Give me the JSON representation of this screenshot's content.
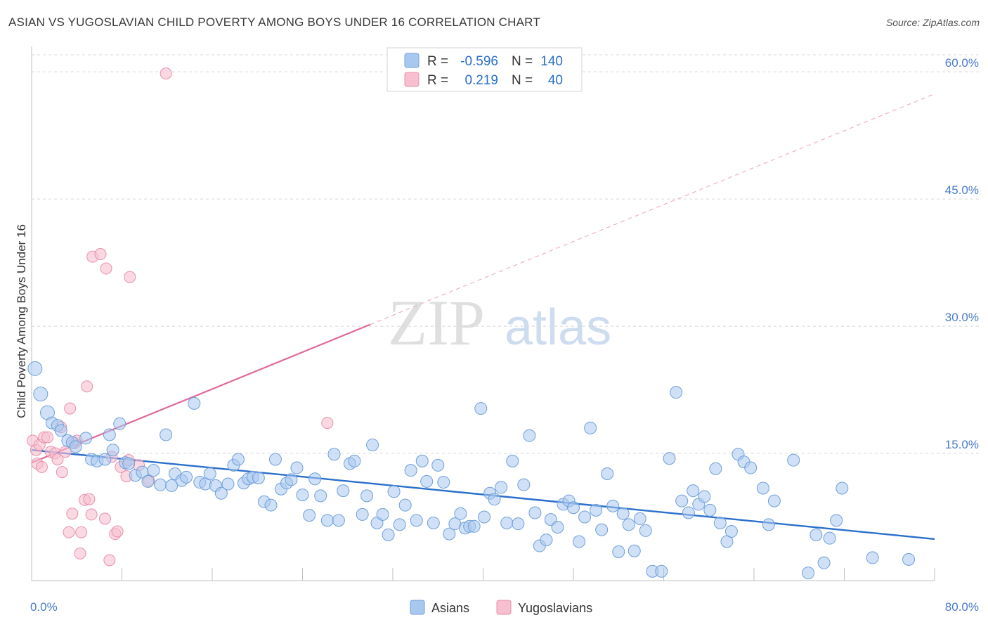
{
  "title": "ASIAN VS YUGOSLAVIAN CHILD POVERTY AMONG BOYS UNDER 16 CORRELATION CHART",
  "source": "Source: ZipAtlas.com",
  "watermark": {
    "zip": "ZIP",
    "atlas": "atlas"
  },
  "legend": {
    "rows": [
      {
        "r_label": "R =",
        "r_value": "-0.596",
        "n_label": "N =",
        "n_value": "140"
      },
      {
        "r_label": "R =",
        "r_value": "0.219",
        "n_label": "N =",
        "n_value": "40"
      }
    ]
  },
  "bottom_legend": [
    "Asians",
    "Yugoslavians"
  ],
  "colors": {
    "asian_fill": "#a9c8f0",
    "asian_stroke": "#6f9fd8",
    "asian_line": "#2a6fcc",
    "yugo_fill": "#f7bfd0",
    "yugo_stroke": "#e890ac",
    "yugo_line": "#e0699a",
    "tick_text": "#4a7cc9",
    "grid": "#d8d8d8"
  },
  "chart_data": {
    "type": "scatter",
    "title": "ASIAN VS YUGOSLAVIAN CHILD POVERTY AMONG BOYS UNDER 16 CORRELATION CHART",
    "xlabel": "",
    "ylabel": "Child Poverty Among Boys Under 16",
    "xlim": [
      0,
      80
    ],
    "ylim": [
      0,
      62
    ],
    "x_tick_labels": [
      "0.0%",
      "80.0%"
    ],
    "y_ticks": [
      15,
      30,
      45,
      60
    ],
    "y_tick_labels": [
      "15.0%",
      "30.0%",
      "45.0%",
      "60.0%"
    ],
    "grid": "horizontal dashed",
    "legend_position": "top-center",
    "series": [
      {
        "name": "Asians",
        "r": -0.596,
        "n": 140,
        "trend": {
          "x": [
            0,
            80
          ],
          "y": [
            15.4,
            4.9
          ]
        },
        "points": [
          [
            0.3,
            25.0
          ],
          [
            0.8,
            22.0
          ],
          [
            1.4,
            19.8
          ],
          [
            1.8,
            18.6
          ],
          [
            2.3,
            18.3
          ],
          [
            2.6,
            17.7
          ],
          [
            3.2,
            16.5
          ],
          [
            3.6,
            16.3
          ],
          [
            3.9,
            15.8
          ],
          [
            4.8,
            16.8
          ],
          [
            5.3,
            14.3
          ],
          [
            5.8,
            14.1
          ],
          [
            6.5,
            14.3
          ],
          [
            6.9,
            17.2
          ],
          [
            7.2,
            15.4
          ],
          [
            7.8,
            18.5
          ],
          [
            8.3,
            13.9
          ],
          [
            8.6,
            13.8
          ],
          [
            9.2,
            12.4
          ],
          [
            9.8,
            12.8
          ],
          [
            10.3,
            11.7
          ],
          [
            10.8,
            13.0
          ],
          [
            11.4,
            11.3
          ],
          [
            11.9,
            17.2
          ],
          [
            12.4,
            11.2
          ],
          [
            12.7,
            12.6
          ],
          [
            13.3,
            11.8
          ],
          [
            13.7,
            12.2
          ],
          [
            14.4,
            20.9
          ],
          [
            14.9,
            11.6
          ],
          [
            15.4,
            11.4
          ],
          [
            15.8,
            12.6
          ],
          [
            16.3,
            11.2
          ],
          [
            16.8,
            10.3
          ],
          [
            17.4,
            11.4
          ],
          [
            17.9,
            13.6
          ],
          [
            18.3,
            14.3
          ],
          [
            18.8,
            11.5
          ],
          [
            19.2,
            12.0
          ],
          [
            19.6,
            12.2
          ],
          [
            20.1,
            12.1
          ],
          [
            20.6,
            9.3
          ],
          [
            21.2,
            8.9
          ],
          [
            21.6,
            14.3
          ],
          [
            22.1,
            10.8
          ],
          [
            22.6,
            11.5
          ],
          [
            23.0,
            11.9
          ],
          [
            23.5,
            13.3
          ],
          [
            24.0,
            10.1
          ],
          [
            24.6,
            7.7
          ],
          [
            25.1,
            12.0
          ],
          [
            25.6,
            10.0
          ],
          [
            26.2,
            7.1
          ],
          [
            26.8,
            14.9
          ],
          [
            27.2,
            7.1
          ],
          [
            27.6,
            10.6
          ],
          [
            28.2,
            13.8
          ],
          [
            28.6,
            14.1
          ],
          [
            29.3,
            7.8
          ],
          [
            29.7,
            10.0
          ],
          [
            30.2,
            16.0
          ],
          [
            30.6,
            6.8
          ],
          [
            31.1,
            7.8
          ],
          [
            31.6,
            5.4
          ],
          [
            32.1,
            10.5
          ],
          [
            32.6,
            6.6
          ],
          [
            33.1,
            8.9
          ],
          [
            33.6,
            13.0
          ],
          [
            34.1,
            7.1
          ],
          [
            34.6,
            14.1
          ],
          [
            35.0,
            11.7
          ],
          [
            35.6,
            6.8
          ],
          [
            36.0,
            13.6
          ],
          [
            36.5,
            11.6
          ],
          [
            37.0,
            5.5
          ],
          [
            37.5,
            6.7
          ],
          [
            38.0,
            7.9
          ],
          [
            38.4,
            6.2
          ],
          [
            38.8,
            6.4
          ],
          [
            39.2,
            6.4
          ],
          [
            39.8,
            20.3
          ],
          [
            40.1,
            7.5
          ],
          [
            40.6,
            10.3
          ],
          [
            41.0,
            9.6
          ],
          [
            41.6,
            11.0
          ],
          [
            42.1,
            6.8
          ],
          [
            42.6,
            14.1
          ],
          [
            43.1,
            6.7
          ],
          [
            43.6,
            11.3
          ],
          [
            44.1,
            17.1
          ],
          [
            44.6,
            8.0
          ],
          [
            45.0,
            4.1
          ],
          [
            45.6,
            4.8
          ],
          [
            46.0,
            7.2
          ],
          [
            46.6,
            6.3
          ],
          [
            47.1,
            9.0
          ],
          [
            47.6,
            9.4
          ],
          [
            48.0,
            8.6
          ],
          [
            48.5,
            4.6
          ],
          [
            49.0,
            7.5
          ],
          [
            49.5,
            18.0
          ],
          [
            50.0,
            8.3
          ],
          [
            50.5,
            6.0
          ],
          [
            51.0,
            12.6
          ],
          [
            51.5,
            8.8
          ],
          [
            52.0,
            3.4
          ],
          [
            52.4,
            7.9
          ],
          [
            52.9,
            6.6
          ],
          [
            53.4,
            3.5
          ],
          [
            53.9,
            7.3
          ],
          [
            54.4,
            5.9
          ],
          [
            55.0,
            1.1
          ],
          [
            55.8,
            1.1
          ],
          [
            56.5,
            14.4
          ],
          [
            57.1,
            22.2
          ],
          [
            57.6,
            9.4
          ],
          [
            58.2,
            8.0
          ],
          [
            58.6,
            10.6
          ],
          [
            59.1,
            9.0
          ],
          [
            59.6,
            9.9
          ],
          [
            60.1,
            8.3
          ],
          [
            60.6,
            13.2
          ],
          [
            61.0,
            6.8
          ],
          [
            61.6,
            4.6
          ],
          [
            62.0,
            5.8
          ],
          [
            62.6,
            14.9
          ],
          [
            63.1,
            14.0
          ],
          [
            63.7,
            13.3
          ],
          [
            64.8,
            10.9
          ],
          [
            65.3,
            6.6
          ],
          [
            65.8,
            9.4
          ],
          [
            67.5,
            14.2
          ],
          [
            68.8,
            0.9
          ],
          [
            69.5,
            5.4
          ],
          [
            70.2,
            2.1
          ],
          [
            70.7,
            5.0
          ],
          [
            71.3,
            7.1
          ],
          [
            71.8,
            10.9
          ],
          [
            74.5,
            2.7
          ],
          [
            77.7,
            2.5
          ]
        ]
      },
      {
        "name": "Yugoslavians",
        "r": 0.219,
        "n": 40,
        "trend": {
          "x": [
            0,
            30
          ],
          "y": [
            13.9,
            30.2
          ]
        },
        "trend_extension": {
          "x": [
            30,
            80
          ],
          "y": [
            30.2,
            57.4
          ]
        },
        "points": [
          [
            0.1,
            16.5
          ],
          [
            0.4,
            15.4
          ],
          [
            0.5,
            13.8
          ],
          [
            0.7,
            16.0
          ],
          [
            0.9,
            13.4
          ],
          [
            1.1,
            16.9
          ],
          [
            1.4,
            16.9
          ],
          [
            1.7,
            15.2
          ],
          [
            2.1,
            15.0
          ],
          [
            2.3,
            14.3
          ],
          [
            2.7,
            12.8
          ],
          [
            2.6,
            18.1
          ],
          [
            3.0,
            15.2
          ],
          [
            3.3,
            5.7
          ],
          [
            3.4,
            20.3
          ],
          [
            3.6,
            7.9
          ],
          [
            3.8,
            16.2
          ],
          [
            4.0,
            16.5
          ],
          [
            4.3,
            3.2
          ],
          [
            4.4,
            5.7
          ],
          [
            4.7,
            9.5
          ],
          [
            4.9,
            22.9
          ],
          [
            5.1,
            9.6
          ],
          [
            5.3,
            7.8
          ],
          [
            5.4,
            38.2
          ],
          [
            6.1,
            38.5
          ],
          [
            6.5,
            7.3
          ],
          [
            6.6,
            36.8
          ],
          [
            6.9,
            2.4
          ],
          [
            7.1,
            14.6
          ],
          [
            7.4,
            5.5
          ],
          [
            7.6,
            5.8
          ],
          [
            7.9,
            13.4
          ],
          [
            8.4,
            12.3
          ],
          [
            8.6,
            14.2
          ],
          [
            8.7,
            35.8
          ],
          [
            9.5,
            13.6
          ],
          [
            10.4,
            11.8
          ],
          [
            11.9,
            59.8
          ],
          [
            26.2,
            18.6
          ]
        ]
      }
    ]
  }
}
